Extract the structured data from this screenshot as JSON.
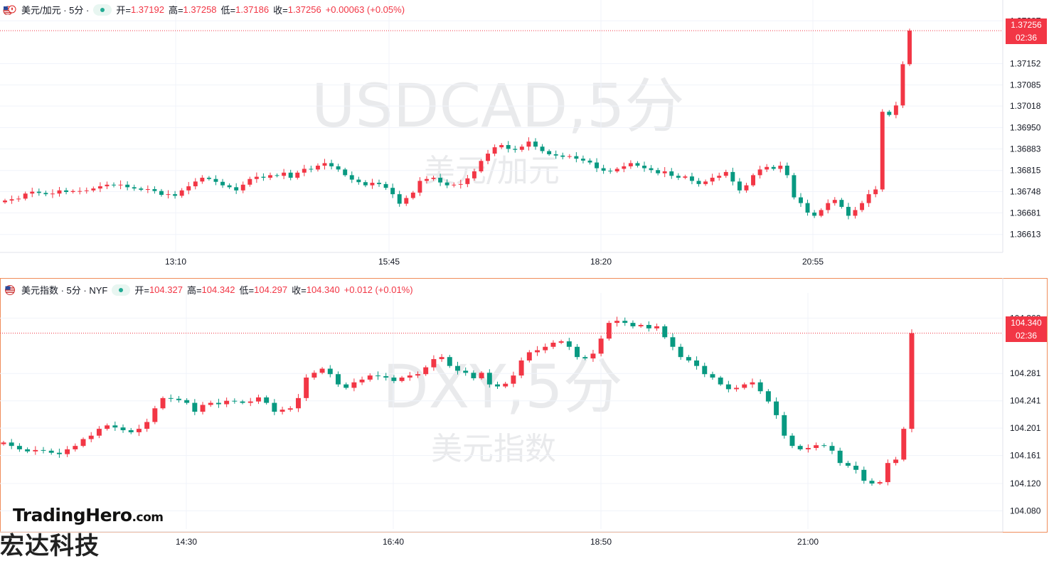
{
  "pane1": {
    "symbol": "美元/加元 · 5分 ·",
    "open_label": "开=",
    "open": "1.37192",
    "high_label": "高=",
    "high": "1.37258",
    "low_label": "低=",
    "low": "1.37186",
    "close_label": "收=",
    "close": "1.37256",
    "change": "+0.00063 (+0.05%)",
    "watermark_big": "USDCAD,5分",
    "watermark_small": "美元/加元",
    "price_tag": "1.37256",
    "countdown": "02:36"
  },
  "pane2": {
    "symbol": "美元指数 · 5分 · NYF",
    "open_label": "开=",
    "open": "104.327",
    "high_label": "高=",
    "high": "104.342",
    "low_label": "低=",
    "low": "104.297",
    "close_label": "收=",
    "close": "104.340",
    "change": "+0.012 (+0.01%)",
    "watermark_big": "DXY,5分",
    "watermark_small": "美元指数",
    "price_tag": "104.340",
    "countdown": "02:36"
  },
  "brand": {
    "name": "TradingHero",
    "suffix": ".com",
    "subtitle": "宏达科技"
  },
  "colors": {
    "up": "#f23645",
    "down": "#089981",
    "grid": "#f0f3fa"
  },
  "chart_data": [
    {
      "type": "candlestick",
      "symbol": "USDCAD",
      "y_ticks": [
        "1.37287",
        "1.37152",
        "1.37085",
        "1.37018",
        "1.36950",
        "1.36883",
        "1.36815",
        "1.36748",
        "1.36681",
        "1.36613"
      ],
      "ylim": [
        1.3659,
        1.3731
      ],
      "x_ticks": [
        "13:10",
        "15:45",
        "18:20",
        "20:55"
      ],
      "last_price": 1.37256,
      "series": [
        {
          "name": "close",
          "values": [
            1.3672,
            1.36724,
            1.36726,
            1.36742,
            1.36748,
            1.36744,
            1.3674,
            1.36742,
            1.36752,
            1.36747,
            1.3675,
            1.3675,
            1.36752,
            1.36758,
            1.36765,
            1.3677,
            1.36768,
            1.3677,
            1.36762,
            1.36758,
            1.36754,
            1.36756,
            1.3675,
            1.36738,
            1.3674,
            1.36735,
            1.36752,
            1.36765,
            1.3678,
            1.36792,
            1.36788,
            1.36779,
            1.36768,
            1.36762,
            1.36752,
            1.3677,
            1.36788,
            1.36795,
            1.36792,
            1.368,
            1.36798,
            1.36808,
            1.36792,
            1.36808,
            1.3682,
            1.36818,
            1.3683,
            1.36838,
            1.36828,
            1.36818,
            1.368,
            1.36786,
            1.36778,
            1.36768,
            1.36776,
            1.36772,
            1.3676,
            1.3674,
            1.3671,
            1.36728,
            1.36745,
            1.36782,
            1.36788,
            1.36792,
            1.36777,
            1.36768,
            1.3677,
            1.36772,
            1.3679,
            1.36812,
            1.36845,
            1.36868,
            1.36888,
            1.36895,
            1.36883,
            1.3688,
            1.3689,
            1.36906,
            1.3689,
            1.36876,
            1.36866,
            1.36862,
            1.36858,
            1.3686,
            1.36852,
            1.36846,
            1.3684,
            1.36822,
            1.36814,
            1.36812,
            1.3682,
            1.36828,
            1.36838,
            1.3683,
            1.36822,
            1.36816,
            1.36806,
            1.36812,
            1.36798,
            1.36792,
            1.36796,
            1.36782,
            1.36772,
            1.3678,
            1.36792,
            1.36798,
            1.3681,
            1.3678,
            1.36752,
            1.36768,
            1.368,
            1.36818,
            1.36826,
            1.3682,
            1.3683,
            1.368,
            1.3673,
            1.36712,
            1.36682,
            1.36672,
            1.3669,
            1.36712,
            1.36722,
            1.367,
            1.36672,
            1.3669,
            1.36712,
            1.3674,
            1.36755,
            1.37,
            1.3699,
            1.3702,
            1.3715,
            1.37256
          ]
        }
      ]
    },
    {
      "type": "candlestick",
      "symbol": "DXY",
      "y_ticks": [
        "104.362",
        "104.281",
        "104.241",
        "104.201",
        "104.161",
        "104.120",
        "104.080"
      ],
      "ylim": [
        104.068,
        104.378
      ],
      "x_ticks": [
        "14:30",
        "16:40",
        "18:50",
        "21:00"
      ],
      "last_price": 104.34,
      "series": [
        {
          "name": "close",
          "values": [
            104.18,
            104.175,
            104.17,
            104.167,
            104.169,
            104.168,
            104.165,
            104.163,
            104.17,
            104.175,
            104.185,
            104.19,
            104.2,
            104.205,
            104.202,
            104.198,
            104.195,
            104.2,
            104.21,
            104.23,
            104.245,
            104.244,
            104.242,
            104.238,
            104.225,
            104.235,
            104.238,
            104.236,
            104.241,
            104.24,
            104.238,
            104.24,
            104.246,
            104.238,
            104.225,
            104.228,
            104.23,
            104.245,
            104.275,
            104.282,
            104.288,
            104.28,
            104.265,
            104.26,
            104.268,
            104.272,
            104.278,
            104.277,
            104.275,
            104.27,
            104.275,
            104.278,
            104.28,
            104.29,
            104.302,
            104.305,
            104.292,
            104.285,
            104.282,
            104.274,
            104.282,
            104.265,
            104.262,
            104.266,
            104.278,
            104.3,
            104.312,
            104.315,
            104.32,
            104.326,
            104.328,
            104.32,
            104.305,
            104.303,
            104.31,
            104.332,
            104.355,
            104.358,
            104.355,
            104.35,
            104.352,
            104.347,
            104.35,
            104.334,
            104.32,
            104.305,
            104.3,
            104.292,
            104.28,
            104.275,
            104.265,
            104.258,
            104.26,
            104.265,
            104.268,
            104.255,
            104.24,
            104.22,
            104.19,
            104.175,
            104.17,
            104.172,
            104.176,
            104.175,
            104.168,
            104.15,
            104.146,
            104.14,
            104.124,
            104.12,
            104.122,
            104.15,
            104.155,
            104.2,
            104.34
          ]
        }
      ]
    }
  ]
}
